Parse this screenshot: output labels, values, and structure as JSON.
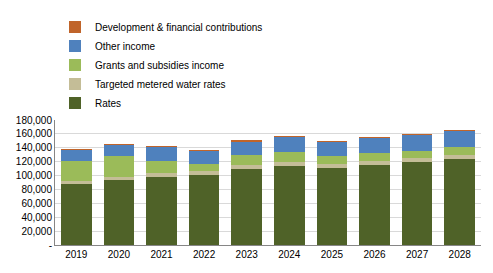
{
  "chart_data": {
    "type": "bar",
    "stacked": true,
    "categories": [
      "2019",
      "2020",
      "2021",
      "2022",
      "2023",
      "2024",
      "2025",
      "2026",
      "2027",
      "2028"
    ],
    "series": [
      {
        "name": "Rates",
        "color": "#4f6228",
        "values": [
          88000,
          93000,
          98000,
          101000,
          110000,
          114000,
          111000,
          115000,
          119000,
          124000
        ]
      },
      {
        "name": "Targeted metered water rates",
        "color": "#c4bd97",
        "values": [
          4500,
          5000,
          5000,
          5000,
          5000,
          5500,
          5500,
          5500,
          6000,
          6000
        ]
      },
      {
        "name": "Grants and subsidies income",
        "color": "#9bbb59",
        "values": [
          28500,
          30000,
          18000,
          10000,
          15000,
          14500,
          11500,
          11500,
          11000,
          11000
        ]
      },
      {
        "name": "Other income",
        "color": "#4f81bd",
        "values": [
          16000,
          16000,
          20000,
          20000,
          19000,
          21000,
          20000,
          22000,
          23000,
          23000
        ]
      },
      {
        "name": "Development & financial contributions",
        "color": "#c0642a",
        "values": [
          1000,
          1000,
          1000,
          1000,
          1500,
          1500,
          1500,
          1500,
          1500,
          1500
        ]
      }
    ],
    "ylim": [
      0,
      180000
    ],
    "yticks": [
      {
        "value": 0,
        "label": "-"
      },
      {
        "value": 20000,
        "label": "20,000"
      },
      {
        "value": 40000,
        "label": "40,000"
      },
      {
        "value": 60000,
        "label": "60,000"
      },
      {
        "value": 80000,
        "label": "80,000"
      },
      {
        "value": 100000,
        "label": "100,000"
      },
      {
        "value": 120000,
        "label": "120,000"
      },
      {
        "value": 140000,
        "label": "140,000"
      },
      {
        "value": 160000,
        "label": "160,000"
      },
      {
        "value": 180000,
        "label": "180,000"
      }
    ],
    "grid": true,
    "legend": "top"
  }
}
